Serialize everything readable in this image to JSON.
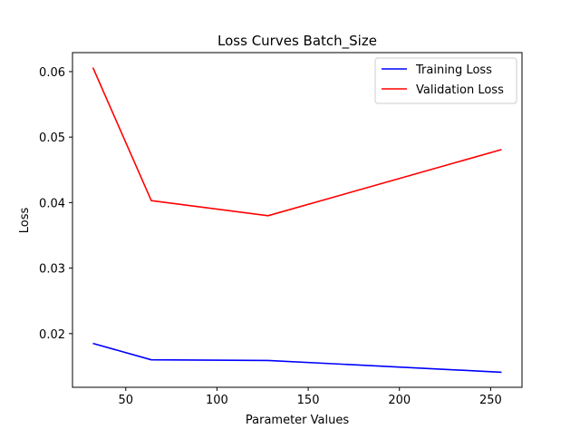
{
  "chart_data": {
    "type": "line",
    "title": "Loss Curves Batch_Size",
    "xlabel": "Parameter Values",
    "ylabel": "Loss",
    "x": [
      32,
      64,
      128,
      256
    ],
    "series": [
      {
        "name": "Training Loss",
        "color": "#0000ff",
        "values": [
          0.0185,
          0.016,
          0.0159,
          0.0141
        ]
      },
      {
        "name": "Validation Loss",
        "color": "#ff0000",
        "values": [
          0.0606,
          0.0403,
          0.038,
          0.0481
        ]
      }
    ],
    "xlim": [
      20.8,
      267.2
    ],
    "ylim": [
      0.0118,
      0.0629
    ],
    "xticks": [
      50,
      100,
      150,
      200,
      250
    ],
    "yticks": [
      0.02,
      0.03,
      0.04,
      0.05,
      0.06
    ],
    "xtick_labels": [
      "50",
      "100",
      "150",
      "200",
      "250"
    ],
    "ytick_labels": [
      "0.02",
      "0.03",
      "0.04",
      "0.05",
      "0.06"
    ],
    "grid": false,
    "legend_position": "upper right"
  }
}
